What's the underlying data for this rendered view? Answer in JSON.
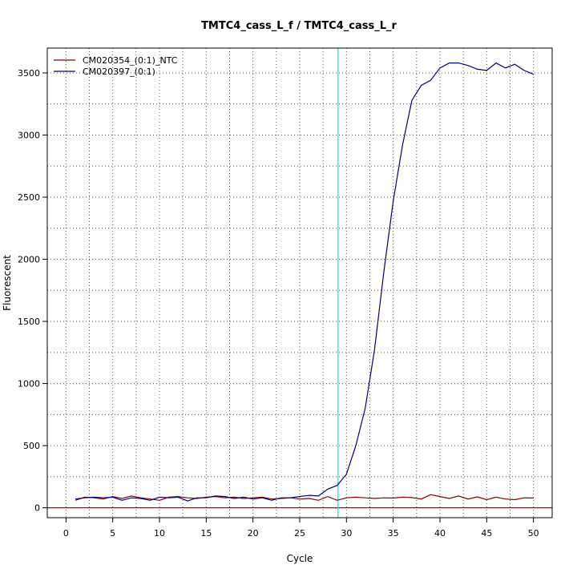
{
  "chart_data": {
    "type": "line",
    "title": "TMTC4_cass_L_f / TMTC4_cass_L_r",
    "xlabel": "Cycle",
    "ylabel": "Fluorescent",
    "xlim": [
      -2,
      52
    ],
    "ylim": [
      -80,
      3700
    ],
    "xticks": [
      0,
      5,
      10,
      15,
      20,
      25,
      30,
      35,
      40,
      45,
      50
    ],
    "yticks": [
      0,
      500,
      1000,
      1500,
      2000,
      2500,
      3000,
      3500
    ],
    "grid": true,
    "legend_position": "top-left",
    "threshold": {
      "x": 29.1,
      "color": "#00e5ee"
    },
    "baseline": {
      "y": 0,
      "color": "#cc0000"
    },
    "x": [
      1,
      2,
      3,
      4,
      5,
      6,
      7,
      8,
      9,
      10,
      11,
      12,
      13,
      14,
      15,
      16,
      17,
      18,
      19,
      20,
      21,
      22,
      23,
      24,
      25,
      26,
      27,
      28,
      29,
      30,
      31,
      32,
      33,
      34,
      35,
      36,
      37,
      38,
      39,
      40,
      41,
      42,
      43,
      44,
      45,
      46,
      47,
      48,
      49,
      50
    ],
    "series": [
      {
        "name": "CM020354_(0:1)_NTC",
        "color": "#8b0000",
        "values": [
          60,
          85,
          80,
          70,
          90,
          75,
          95,
          80,
          70,
          60,
          85,
          90,
          80,
          75,
          85,
          90,
          80,
          85,
          75,
          80,
          85,
          70,
          75,
          80,
          70,
          75,
          60,
          90,
          60,
          80,
          85,
          80,
          75,
          80,
          78,
          85,
          82,
          70,
          105,
          90,
          75,
          95,
          70,
          88,
          65,
          85,
          70,
          65,
          80,
          78
        ]
      },
      {
        "name": "CM020397_(0:1)",
        "color": "#000080",
        "values": [
          70,
          80,
          85,
          80,
          85,
          60,
          80,
          75,
          60,
          85,
          80,
          85,
          55,
          80,
          80,
          95,
          90,
          75,
          85,
          70,
          80,
          60,
          80,
          80,
          90,
          100,
          95,
          150,
          180,
          270,
          500,
          800,
          1270,
          1900,
          2470,
          2920,
          3280,
          3400,
          3440,
          3540,
          3580,
          3580,
          3560,
          3530,
          3520,
          3580,
          3540,
          3570,
          3520,
          3490
        ]
      }
    ]
  }
}
